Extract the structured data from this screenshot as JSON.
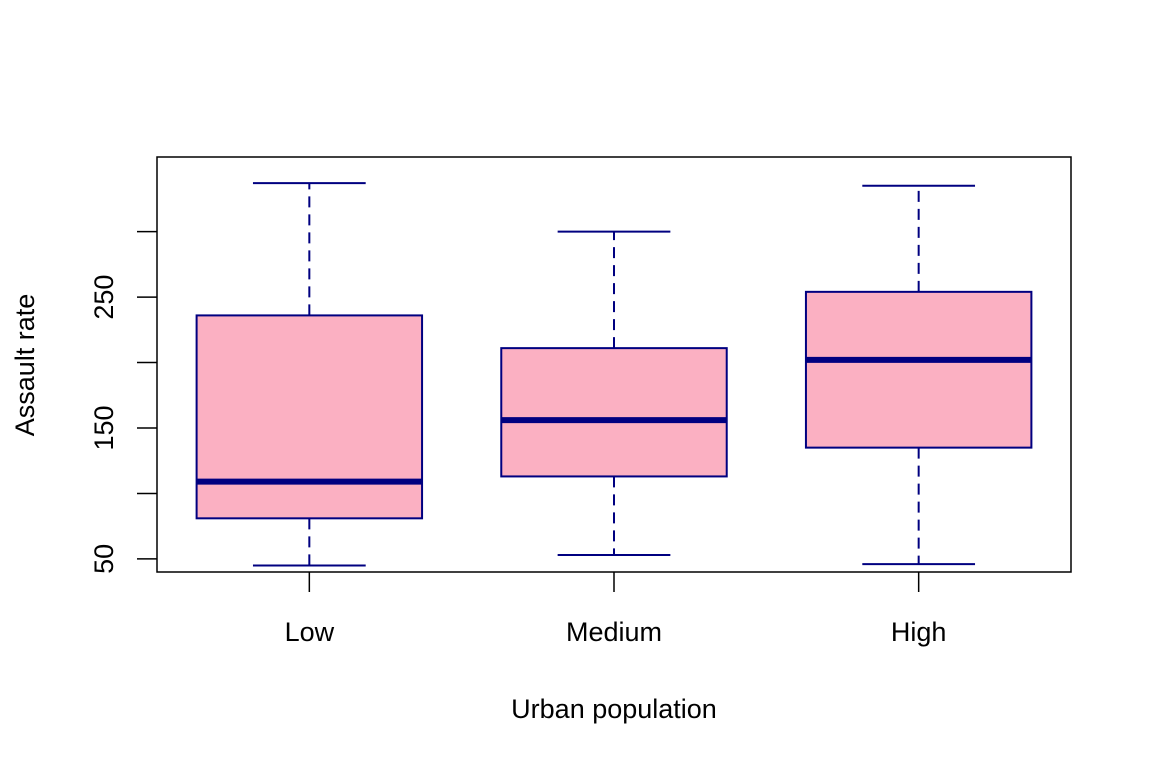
{
  "chart_data": {
    "type": "boxplot",
    "title": "",
    "xlabel": "Urban population",
    "ylabel": "Assault rate",
    "categories": [
      "Low",
      "Medium",
      "High"
    ],
    "ylim": [
      40,
      357
    ],
    "yticks": [
      50,
      100,
      150,
      200,
      250,
      300
    ],
    "ytick_labels": [
      "50",
      "",
      "150",
      "",
      "250",
      ""
    ],
    "grid": false,
    "series": [
      {
        "name": "Low",
        "whisker_low": 45,
        "q1": 81,
        "median": 109,
        "q3": 236,
        "whisker_high": 337
      },
      {
        "name": "Medium",
        "whisker_low": 53,
        "q1": 113,
        "median": 156,
        "q3": 211,
        "whisker_high": 300
      },
      {
        "name": "High",
        "whisker_low": 46,
        "q1": 135,
        "median": 202,
        "q3": 254,
        "whisker_high": 335
      }
    ],
    "colors": {
      "box_fill": "#fbb0c2",
      "box_border": "#000080",
      "axis": "#000000"
    }
  }
}
